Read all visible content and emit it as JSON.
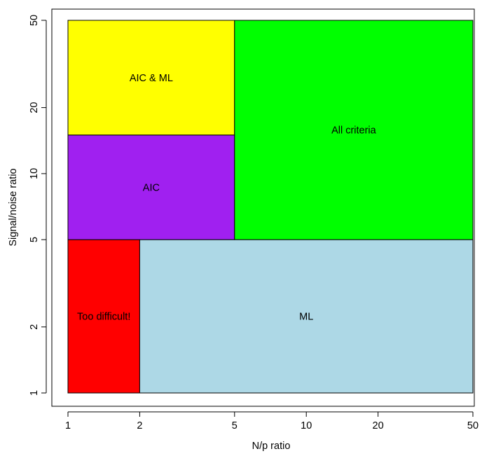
{
  "chart_data": {
    "type": "region",
    "title": "",
    "xlabel": "N/p ratio",
    "ylabel": "Signal/noise ratio",
    "xscale": "log",
    "yscale": "log",
    "xlim": [
      1,
      50
    ],
    "ylim": [
      1,
      50
    ],
    "xticks": [
      1,
      2,
      5,
      10,
      20,
      50
    ],
    "yticks": [
      1,
      2,
      5,
      10,
      20,
      50
    ],
    "grid": false,
    "regions": [
      {
        "label": "Too difficult!",
        "x": [
          1,
          2
        ],
        "y": [
          1,
          5
        ],
        "color": "#ff0000"
      },
      {
        "label": "ML",
        "x": [
          2,
          50
        ],
        "y": [
          1,
          5
        ],
        "color": "#add8e6"
      },
      {
        "label": "AIC",
        "x": [
          1,
          5
        ],
        "y": [
          5,
          15
        ],
        "color": "#a020f0"
      },
      {
        "label": "AIC & ML",
        "x": [
          1,
          5
        ],
        "y": [
          15,
          50
        ],
        "color": "#ffff00"
      },
      {
        "label": "All criteria",
        "x": [
          5,
          50
        ],
        "y": [
          5,
          50
        ],
        "color": "#00ff00"
      }
    ]
  }
}
